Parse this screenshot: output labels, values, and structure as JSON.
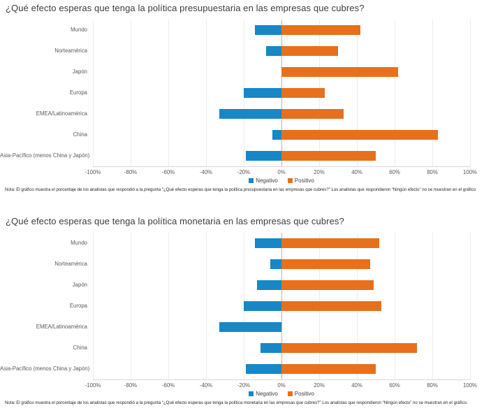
{
  "legend": {
    "negativo": "Negativo",
    "positivo": "Positivo"
  },
  "colors": {
    "negativo": "#1787C6",
    "positivo": "#E7701D",
    "gridline": "#ececec",
    "zero_line": "#b9b9b9"
  },
  "chart_data": [
    {
      "type": "bar",
      "orientation": "horizontal",
      "title": "¿Qué efecto esperas que tenga la política presupuestaria en las empresas que cubres?",
      "categories": [
        "Mundo",
        "Norteamérica",
        "Japón",
        "Europa",
        "EMEA/Latinoamérica",
        "China",
        "Asia-Pacífico (menos China y Japón)"
      ],
      "series": [
        {
          "name": "Negativo",
          "color": "#1787C6",
          "values": [
            -14,
            -8,
            0,
            -20,
            -33,
            -5,
            -19
          ]
        },
        {
          "name": "Positivo",
          "color": "#E7701D",
          "values": [
            42,
            30,
            62,
            23,
            33,
            83,
            50
          ]
        }
      ],
      "xlim": [
        -100,
        100
      ],
      "x_ticks": [
        "-100%",
        "-80%",
        "-60%",
        "-40%",
        "-20%",
        "0%",
        "20%",
        "40%",
        "60%",
        "80%",
        "100%"
      ],
      "grid": "vertical",
      "legend_position": "bottom",
      "note": "Nota: El gráfico muestra el porcentaje de los analistas que respondió a la pregunta “¿Qué efecto esperas que tenga la política presupuestaria en las empresas que cubres?” Los analistas que respondieron “Ningún efecto” no se muestran en el gráfico"
    },
    {
      "type": "bar",
      "orientation": "horizontal",
      "title": "¿Qué efecto esperas que tenga la política monetaria en las empresas que cubres?",
      "categories": [
        "Mundo",
        "Norteamérica",
        "Japón",
        "Europa",
        "EMEA/Latinoamérica",
        "China",
        "Asia-Pacífico (menos China y Japón)"
      ],
      "series": [
        {
          "name": "Negativo",
          "color": "#1787C6",
          "values": [
            -14,
            -6,
            -13,
            -20,
            -33,
            -11,
            -19
          ]
        },
        {
          "name": "Positivo",
          "color": "#E7701D",
          "values": [
            52,
            47,
            49,
            53,
            0,
            72,
            50
          ]
        }
      ],
      "xlim": [
        -100,
        100
      ],
      "x_ticks": [
        "-100%",
        "-80%",
        "-60%",
        "-40%",
        "-20%",
        "0%",
        "20%",
        "40%",
        "60%",
        "80%",
        "100%"
      ],
      "grid": "vertical",
      "legend_position": "bottom",
      "note": "Nota: El gráfico muestra el porcentaje de los analistas que respondió a la pregunta “¿Qué efecto esperas que tenga la política monetaria en las empresas que cubres?” Los analistas que respondieron “Ningún efecto” no se muestran en el gráfico."
    }
  ]
}
